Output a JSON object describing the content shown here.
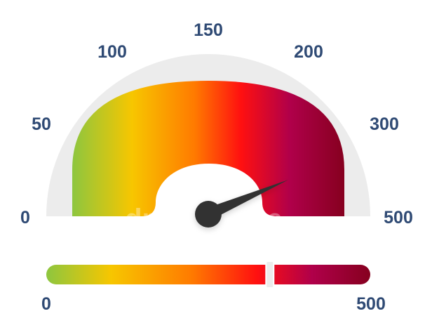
{
  "gauge": {
    "min": 0,
    "max": 500,
    "value": 345,
    "tick_labels": [
      "0",
      "50",
      "100",
      "150",
      "200",
      "300",
      "500"
    ],
    "colors": {
      "track": "#ececec",
      "needle": "#333333",
      "label": "#2f4a74",
      "green": "#8dc63f",
      "yellow": "#f7c600",
      "orange": "#ff7a00",
      "red": "#ff1010",
      "crimson": "#b0004a",
      "maroon": "#86001f"
    }
  },
  "bar": {
    "min_label": "0",
    "max_label": "500",
    "marker_fraction": 0.69
  },
  "watermark": {
    "text": "dreamstime."
  }
}
